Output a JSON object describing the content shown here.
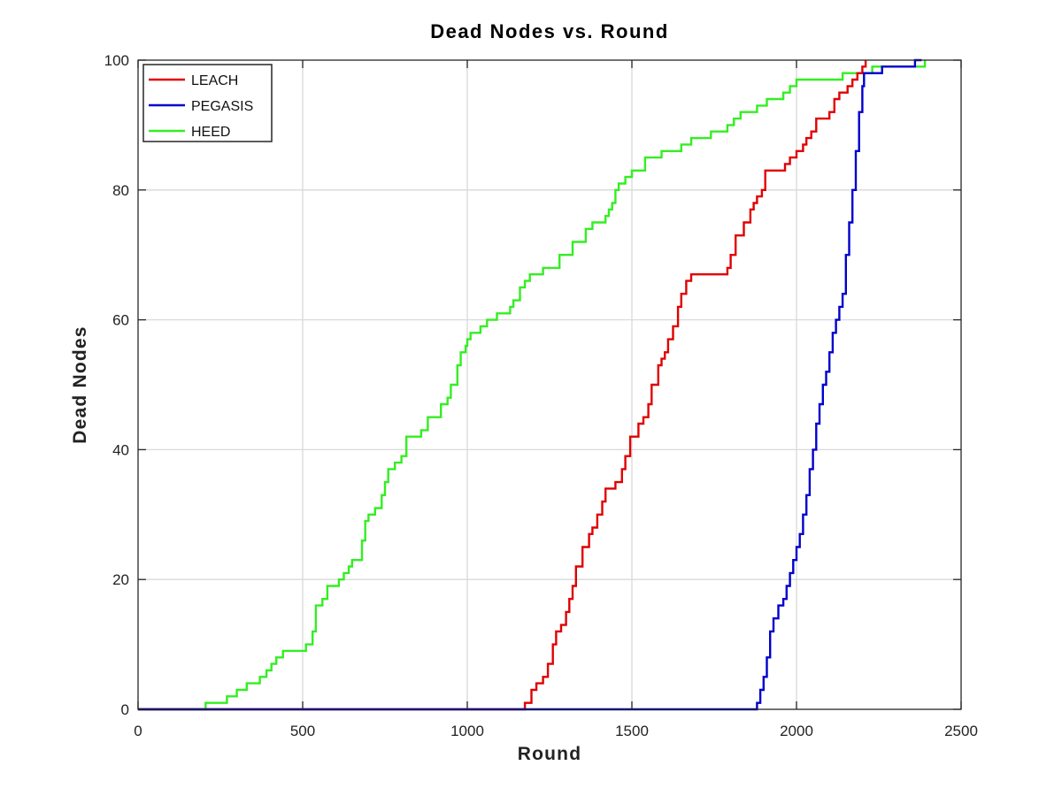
{
  "chart_data": {
    "type": "line",
    "title": "Dead Nodes vs. Round",
    "xlabel": "Round",
    "ylabel": "Dead Nodes",
    "xlim": [
      0,
      2500
    ],
    "ylim": [
      0,
      100
    ],
    "xticks": [
      0,
      500,
      1000,
      1500,
      2000,
      2500
    ],
    "yticks": [
      0,
      20,
      40,
      60,
      80,
      100
    ],
    "grid": true,
    "legend_position": "top-left",
    "series": [
      {
        "name": "LEACH",
        "color": "#e00000",
        "x": [
          0,
          1165,
          1175,
          1195,
          1210,
          1230,
          1245,
          1260,
          1270,
          1285,
          1300,
          1310,
          1320,
          1330,
          1340,
          1350,
          1370,
          1380,
          1395,
          1410,
          1420,
          1440,
          1450,
          1470,
          1480,
          1495,
          1520,
          1535,
          1550,
          1560,
          1580,
          1590,
          1600,
          1610,
          1625,
          1640,
          1650,
          1665,
          1680,
          1690,
          1700,
          1720,
          1740,
          1770,
          1790,
          1800,
          1815,
          1830,
          1840,
          1860,
          1870,
          1880,
          1895,
          1905,
          1920,
          1940,
          1965,
          1980,
          2000,
          2020,
          2030,
          2045,
          2060,
          2075,
          2085,
          2100,
          2115,
          2130,
          2140,
          2155,
          2170,
          2185,
          2200,
          2210
        ],
        "y": [
          0,
          0,
          1,
          3,
          4,
          5,
          7,
          10,
          12,
          13,
          15,
          17,
          19,
          22,
          22,
          25,
          27,
          28,
          30,
          32,
          34,
          34,
          35,
          37,
          39,
          42,
          44,
          45,
          47,
          50,
          53,
          54,
          55,
          57,
          59,
          62,
          64,
          66,
          67,
          67,
          67,
          67,
          67,
          67,
          68,
          70,
          73,
          73,
          75,
          77,
          78,
          79,
          80,
          83,
          83,
          83,
          84,
          85,
          86,
          87,
          88,
          89,
          91,
          91,
          91,
          92,
          94,
          95,
          95,
          96,
          97,
          98,
          99,
          100
        ]
      },
      {
        "name": "PEGASIS",
        "color": "#0000cc",
        "x": [
          0,
          1875,
          1880,
          1890,
          1900,
          1910,
          1920,
          1930,
          1945,
          1960,
          1970,
          1980,
          1990,
          2000,
          2010,
          2020,
          2030,
          2040,
          2050,
          2060,
          2070,
          2080,
          2090,
          2100,
          2110,
          2120,
          2130,
          2140,
          2150,
          2160,
          2170,
          2180,
          2190,
          2200,
          2205,
          2210,
          2230,
          2260,
          2290,
          2320,
          2360,
          2380
        ],
        "y": [
          0,
          0,
          1,
          3,
          5,
          8,
          12,
          14,
          16,
          17,
          19,
          21,
          23,
          25,
          27,
          30,
          33,
          37,
          40,
          44,
          47,
          50,
          52,
          55,
          58,
          60,
          62,
          64,
          70,
          75,
          80,
          86,
          92,
          96,
          98,
          98,
          98,
          99,
          99,
          99,
          100,
          100
        ]
      },
      {
        "name": "HEED",
        "color": "#33ee22",
        "x": [
          0,
          205,
          270,
          300,
          330,
          370,
          390,
          405,
          420,
          440,
          500,
          510,
          530,
          540,
          560,
          575,
          590,
          610,
          625,
          640,
          650,
          680,
          690,
          700,
          720,
          740,
          750,
          760,
          780,
          800,
          815,
          840,
          860,
          880,
          900,
          920,
          940,
          950,
          970,
          980,
          995,
          1000,
          1010,
          1020,
          1040,
          1060,
          1090,
          1120,
          1130,
          1140,
          1160,
          1175,
          1190,
          1210,
          1230,
          1250,
          1280,
          1300,
          1320,
          1360,
          1380,
          1395,
          1420,
          1430,
          1440,
          1450,
          1460,
          1480,
          1500,
          1540,
          1570,
          1590,
          1620,
          1650,
          1680,
          1710,
          1740,
          1790,
          1810,
          1830,
          1880,
          1910,
          1940,
          1960,
          1980,
          2000,
          2030,
          2060,
          2080,
          2110,
          2140,
          2170,
          2190,
          2230,
          2280,
          2330,
          2380,
          2390
        ],
        "y": [
          0,
          1,
          2,
          3,
          4,
          5,
          6,
          7,
          8,
          9,
          9,
          10,
          12,
          16,
          17,
          19,
          19,
          20,
          21,
          22,
          23,
          26,
          29,
          30,
          31,
          33,
          35,
          37,
          38,
          39,
          42,
          42,
          43,
          45,
          45,
          47,
          48,
          50,
          53,
          55,
          56,
          57,
          58,
          58,
          59,
          60,
          61,
          61,
          62,
          63,
          65,
          66,
          67,
          67,
          68,
          68,
          70,
          70,
          72,
          74,
          75,
          75,
          76,
          77,
          78,
          80,
          81,
          82,
          83,
          85,
          85,
          86,
          86,
          87,
          88,
          88,
          89,
          90,
          91,
          92,
          93,
          94,
          94,
          95,
          96,
          97,
          97,
          97,
          97,
          97,
          98,
          98,
          98,
          99,
          99,
          99,
          99,
          100
        ]
      }
    ]
  }
}
